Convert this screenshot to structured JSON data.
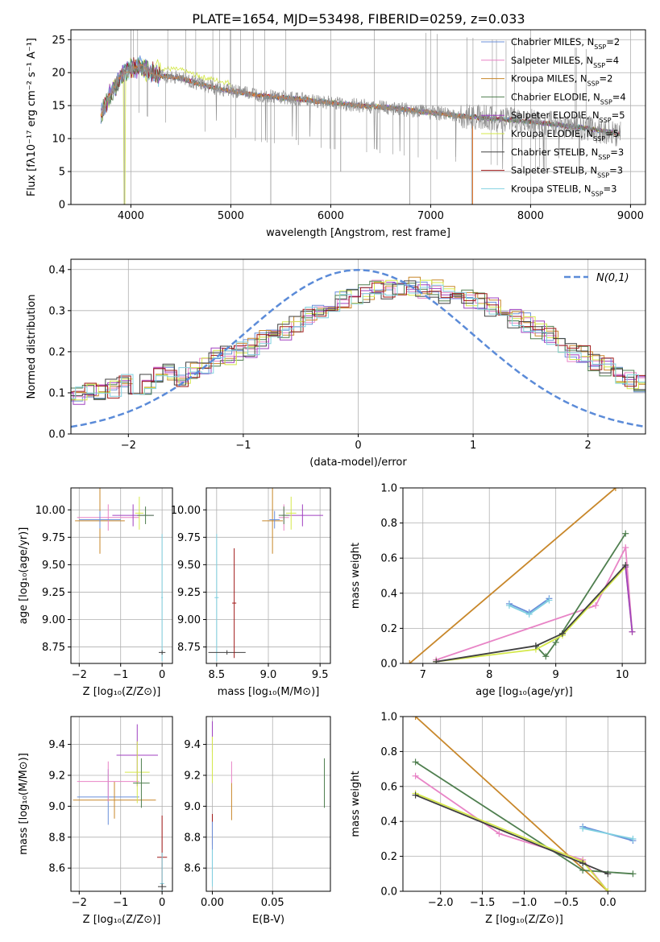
{
  "title": "PLATE=1654, MJD=53498, FIBERID=0259, z=0.033",
  "colors": {
    "Chabrier MILES": "#6a8fd9",
    "Salpeter MILES": "#e884c6",
    "Kroupa MILES": "#c8872a",
    "Chabrier ELODIE": "#4f7f4f",
    "Salpeter ELODIE": "#a040c0",
    "Kroupa ELODIE": "#d4e84a",
    "Chabrier STELIB": "#404040",
    "Salpeter STELIB": "#a01818",
    "Kroupa STELIB": "#80d0e0",
    "data": "#909090",
    "normal": "#5b8bd8",
    "model": "#e07830"
  },
  "legend": [
    {
      "key": "Chabrier MILES",
      "text": "Chabrier MILES, N",
      "sub": "SSP",
      "tail": "=2"
    },
    {
      "key": "Salpeter MILES",
      "text": "Salpeter MILES, N",
      "sub": "SSP",
      "tail": "=4"
    },
    {
      "key": "Kroupa MILES",
      "text": "Kroupa MILES, N",
      "sub": "SSP",
      "tail": "=2"
    },
    {
      "key": "Chabrier ELODIE",
      "text": "Chabrier ELODIE, N",
      "sub": "SSP",
      "tail": "=4"
    },
    {
      "key": "Salpeter ELODIE",
      "text": "Salpeter ELODIE, N",
      "sub": "SSP",
      "tail": "=5"
    },
    {
      "key": "Kroupa ELODIE",
      "text": "Kroupa ELODIE, N",
      "sub": "SSP",
      "tail": "=5"
    },
    {
      "key": "Chabrier STELIB",
      "text": "Chabrier STELIB, N",
      "sub": "SSP",
      "tail": "=3"
    },
    {
      "key": "Salpeter STELIB",
      "text": "Salpeter STELIB, N",
      "sub": "SSP",
      "tail": "=3"
    },
    {
      "key": "Kroupa STELIB",
      "text": "Kroupa STELIB, N",
      "sub": "SSP",
      "tail": "=3"
    }
  ],
  "chart_data": [
    {
      "type": "line",
      "name": "spectrum",
      "xlabel": "wavelength [Angstrom, rest frame]",
      "ylabel": "Flux [fλ10⁻¹⁷ erg cm⁻² s⁻¹ A⁻¹]",
      "xlim": [
        3400,
        9150
      ],
      "ylim": [
        0,
        26.5
      ],
      "xticks": [
        "4000",
        "5000",
        "6000",
        "7000",
        "8000",
        "9000"
      ],
      "yticks": [
        "0",
        "5",
        "10",
        "15",
        "20",
        "25"
      ],
      "continuum": {
        "x": [
          3700,
          3800,
          3900,
          4000,
          4100,
          4200,
          4300,
          4500,
          4700,
          4900,
          5100,
          5300,
          5500,
          5700,
          5900,
          6100,
          6300,
          6500,
          6700,
          6900,
          7100,
          7300,
          7500,
          7700,
          7900,
          8100,
          8300,
          8500,
          8700,
          8900
        ],
        "y": [
          13.5,
          17,
          19.5,
          20.5,
          21,
          20,
          19.5,
          19.2,
          18.2,
          17.5,
          17.0,
          16.5,
          16.2,
          16.0,
          15.6,
          15.3,
          15.0,
          14.8,
          14.5,
          14.1,
          13.8,
          13.4,
          13.2,
          12.9,
          12.7,
          12.4,
          12.0,
          11.7,
          11.2,
          10.7
        ]
      },
      "orange_model_end": 7420,
      "lines": [
        {
          "x": 3934,
          "y": 0
        },
        {
          "x": 5400,
          "y": 0
        },
        {
          "x": 6790,
          "y": 0
        },
        {
          "x": 6100,
          "y": 5
        },
        {
          "x": 7410,
          "y": 0
        }
      ]
    },
    {
      "type": "line",
      "name": "residual-distribution",
      "xlabel": "(data-model)/error",
      "ylabel": "Normed distribution",
      "xlim": [
        -2.5,
        2.5
      ],
      "ylim": [
        0,
        0.425
      ],
      "xticks": [
        "-2",
        "-1",
        "0",
        "1",
        "2"
      ],
      "yticks": [
        "0.0",
        "0.1",
        "0.2",
        "0.3",
        "0.4"
      ],
      "legend_label": "N(0,1)",
      "hist": {
        "bin_start": -2.5,
        "bin_width": 0.1,
        "values": [
          0.08,
          0.09,
          0.11,
          0.1,
          0.11,
          0.12,
          0.11,
          0.12,
          0.14,
          0.15,
          0.14,
          0.16,
          0.17,
          0.19,
          0.19,
          0.2,
          0.21,
          0.23,
          0.24,
          0.25,
          0.27,
          0.29,
          0.3,
          0.31,
          0.33,
          0.33,
          0.34,
          0.35,
          0.35,
          0.36,
          0.36,
          0.35,
          0.35,
          0.34,
          0.33,
          0.33,
          0.32,
          0.31,
          0.3,
          0.28,
          0.27,
          0.25,
          0.24,
          0.22,
          0.2,
          0.19,
          0.17,
          0.16,
          0.14,
          0.13,
          0.12,
          0.11,
          0.1,
          0.09,
          0.08,
          0.07,
          0.07,
          0.06,
          0.06,
          0.06,
          0.05,
          0.05,
          0.05,
          0.05,
          0.05,
          0.04,
          0.04,
          0.04,
          0.04,
          0.03
        ]
      }
    },
    {
      "type": "scatter",
      "name": "age-vs-Z",
      "xlabel": "Z [log₁₀(Z/Z⊙)]",
      "ylabel": "age  [log₁₀(age/yr)]",
      "xlim": [
        -2.2,
        0.25
      ],
      "ylim": [
        8.6,
        10.2
      ],
      "xticks": [
        "-2",
        "-1",
        "0"
      ],
      "yticks": [
        "8.75",
        "9.00",
        "9.25",
        "9.50",
        "9.75",
        "10.00"
      ],
      "points": [
        {
          "key": "Kroupa MILES",
          "x": -1.5,
          "y": 9.9,
          "xe": 0.6,
          "ye": 0.3
        },
        {
          "key": "Salpeter MILES",
          "x": -1.3,
          "y": 9.93,
          "xe": 0.75,
          "ye": 0.12
        },
        {
          "key": "Chabrier MILES",
          "x": -1.5,
          "y": 9.91,
          "xe": 0.5,
          "ye": 0.08
        },
        {
          "key": "Salpeter ELODIE",
          "x": -0.7,
          "y": 9.95,
          "xe": 0.5,
          "ye": 0.1
        },
        {
          "key": "Kroupa ELODIE",
          "x": -0.55,
          "y": 9.97,
          "xe": 0.1,
          "ye": 0.15
        },
        {
          "key": "Chabrier ELODIE",
          "x": -0.4,
          "y": 9.95,
          "xe": 0.2,
          "ye": 0.08
        },
        {
          "key": "Kroupa STELIB",
          "x": 0.0,
          "y": 9.2,
          "xe": 0.02,
          "ye": 0.58
        },
        {
          "key": "Chabrier STELIB",
          "x": 0.0,
          "y": 8.7,
          "xe": 0.08,
          "ye": 0.02
        }
      ]
    },
    {
      "type": "scatter",
      "name": "age-vs-mass",
      "xlabel": "mass [log₁₀(M/M⊙)]",
      "ylabel": "",
      "xlim": [
        8.4,
        9.6
      ],
      "ylim": [
        8.6,
        10.2
      ],
      "xticks": [
        "8.5",
        "9.0",
        "9.5"
      ],
      "yticks": [
        "8.75",
        "9.00",
        "9.25",
        "9.50",
        "9.75",
        "10.00"
      ],
      "points": [
        {
          "key": "Kroupa STELIB",
          "x": 8.5,
          "y": 9.2,
          "xe": 0.02,
          "ye": 0.58
        },
        {
          "key": "Chabrier STELIB",
          "x": 8.6,
          "y": 8.7,
          "xe": 0.18,
          "ye": 0.02
        },
        {
          "key": "Salpeter STELIB",
          "x": 8.67,
          "y": 9.15,
          "xe": 0.02,
          "ye": 0.5
        },
        {
          "key": "Kroupa MILES",
          "x": 9.04,
          "y": 9.9,
          "xe": 0.1,
          "ye": 0.3
        },
        {
          "key": "Salpeter MILES",
          "x": 9.15,
          "y": 9.93,
          "xe": 0.05,
          "ye": 0.12
        },
        {
          "key": "Salpeter ELODIE",
          "x": 9.33,
          "y": 9.95,
          "xe": 0.2,
          "ye": 0.1
        },
        {
          "key": "Kroupa ELODIE",
          "x": 9.22,
          "y": 9.97,
          "xe": 0.05,
          "ye": 0.15
        },
        {
          "key": "Chabrier ELODIE",
          "x": 9.15,
          "y": 9.95,
          "xe": 0.05,
          "ye": 0.08
        },
        {
          "key": "Chabrier MILES",
          "x": 9.06,
          "y": 9.91,
          "xe": 0.05,
          "ye": 0.08
        }
      ]
    },
    {
      "type": "line",
      "name": "mass-weight-vs-age",
      "xlabel": "age  [log₁₀(age/yr)]",
      "ylabel": "mass weight",
      "xlim": [
        6.7,
        10.35
      ],
      "ylim": [
        0,
        1.0
      ],
      "xticks": [
        "7",
        "8",
        "9",
        "10"
      ],
      "yticks": [
        "0.0",
        "0.2",
        "0.4",
        "0.6",
        "0.8",
        "1.0"
      ],
      "series": [
        {
          "key": "Kroupa MILES",
          "x": [
            6.8,
            9.9
          ],
          "y": [
            0.0,
            1.0
          ]
        },
        {
          "key": "Chabrier MILES",
          "x": [
            8.3,
            8.6,
            8.9
          ],
          "y": [
            0.34,
            0.29,
            0.37
          ]
        },
        {
          "key": "Kroupa STELIB",
          "x": [
            8.3,
            8.6,
            8.9
          ],
          "y": [
            0.33,
            0.28,
            0.36
          ]
        },
        {
          "key": "Salpeter MILES",
          "x": [
            7.2,
            9.6,
            10.05,
            10.15
          ],
          "y": [
            0.02,
            0.33,
            0.66,
            0.18
          ]
        },
        {
          "key": "Chabrier ELODIE",
          "x": [
            8.7,
            8.85,
            9.0,
            10.05
          ],
          "y": [
            0.1,
            0.04,
            0.12,
            0.74
          ]
        },
        {
          "key": "Kroupa ELODIE",
          "x": [
            7.2,
            8.7,
            9.1,
            10.05,
            10.15
          ],
          "y": [
            0.01,
            0.08,
            0.16,
            0.55,
            0.18
          ]
        },
        {
          "key": "Salpeter ELODIE",
          "x": [
            10.05,
            10.15
          ],
          "y": [
            0.55,
            0.18
          ]
        },
        {
          "key": "Chabrier STELIB",
          "x": [
            7.2,
            8.7,
            9.1,
            10.05
          ],
          "y": [
            0.01,
            0.1,
            0.17,
            0.56
          ]
        }
      ]
    },
    {
      "type": "scatter",
      "name": "mass-vs-Z",
      "xlabel": "Z [log₁₀(Z/Z⊙)]",
      "ylabel": "mass [log₁₀(M/M⊙)]",
      "xlim": [
        -2.2,
        0.25
      ],
      "ylim": [
        8.45,
        9.58
      ],
      "xticks": [
        "-2",
        "-1",
        "0"
      ],
      "yticks": [
        "8.6",
        "8.8",
        "9.0",
        "9.2",
        "9.4"
      ],
      "points": [
        {
          "key": "Chabrier MILES",
          "x": -1.3,
          "y": 9.06,
          "xe": 0.75,
          "ye": 0.18
        },
        {
          "key": "Kroupa MILES",
          "x": -1.15,
          "y": 9.04,
          "xe": 1.0,
          "ye": 0.12
        },
        {
          "key": "Salpeter MILES",
          "x": -1.3,
          "y": 9.16,
          "xe": 0.75,
          "ye": 0.13
        },
        {
          "key": "Salpeter ELODIE",
          "x": -0.6,
          "y": 9.33,
          "xe": 0.5,
          "ye": 0.2
        },
        {
          "key": "Kroupa ELODIE",
          "x": -0.6,
          "y": 9.22,
          "xe": 0.3,
          "ye": 0.2
        },
        {
          "key": "Chabrier ELODIE",
          "x": -0.5,
          "y": 9.15,
          "xe": 0.2,
          "ye": 0.16
        },
        {
          "key": "Salpeter STELIB",
          "x": 0.0,
          "y": 8.67,
          "xe": 0.12,
          "ye": 0.27
        },
        {
          "key": "Kroupa STELIB",
          "x": 0.0,
          "y": 8.5,
          "xe": 0.05,
          "ye": 0.2
        },
        {
          "key": "Chabrier STELIB",
          "x": 0.0,
          "y": 8.48,
          "xe": 0.1,
          "ye": 0.02
        }
      ]
    },
    {
      "type": "scatter",
      "name": "mass-vs-EBV",
      "xlabel": "E(B-V)",
      "ylabel": "",
      "xlim": [
        -0.005,
        0.098
      ],
      "ylim": [
        8.45,
        9.58
      ],
      "xticks": [
        "0.00",
        "0.05"
      ],
      "yticks": [
        "8.6",
        "8.8",
        "9.0",
        "9.2",
        "9.4"
      ],
      "points": [
        {
          "key": "Salpeter ELODIE",
          "x": 0.0,
          "y": 9.45,
          "xe": 0.0,
          "ye": 0.1
        },
        {
          "key": "Kroupa ELODIE",
          "x": 0.0,
          "y": 9.3,
          "xe": 0.0,
          "ye": 0.15
        },
        {
          "key": "Salpeter STELIB",
          "x": 0.0,
          "y": 8.85,
          "xe": 0.0,
          "ye": 0.1
        },
        {
          "key": "Chabrier MILES",
          "x": 0.0,
          "y": 8.7,
          "xe": 0.0,
          "ye": 0.2
        },
        {
          "key": "Kroupa STELIB",
          "x": 0.0,
          "y": 8.6,
          "xe": 0.0,
          "ye": 0.12
        },
        {
          "key": "Salpeter MILES",
          "x": 0.016,
          "y": 9.22,
          "xe": 0.0,
          "ye": 0.07
        },
        {
          "key": "Kroupa MILES",
          "x": 0.016,
          "y": 9.03,
          "xe": 0.0,
          "ye": 0.12
        },
        {
          "key": "Chabrier ELODIE",
          "x": 0.093,
          "y": 9.15,
          "xe": 0.0,
          "ye": 0.16
        }
      ]
    },
    {
      "type": "line",
      "name": "mass-weight-vs-Z",
      "xlabel": "Z [log₁₀(Z/Z⊙)]",
      "ylabel": "mass weight",
      "xlim": [
        -2.45,
        0.45
      ],
      "ylim": [
        0,
        1.0
      ],
      "xticks": [
        "-2.0",
        "-1.5",
        "-1.0",
        "-0.5",
        "0.0"
      ],
      "yticks": [
        "0.0",
        "0.2",
        "0.4",
        "0.6",
        "0.8",
        "1.0"
      ],
      "series": [
        {
          "key": "Kroupa MILES",
          "x": [
            -2.3,
            0.0
          ],
          "y": [
            1.0,
            0.0
          ]
        },
        {
          "key": "Chabrier MILES",
          "x": [
            -0.3,
            0.3
          ],
          "y": [
            0.37,
            0.29
          ]
        },
        {
          "key": "Kroupa STELIB",
          "x": [
            -0.3,
            0.3
          ],
          "y": [
            0.36,
            0.3
          ]
        },
        {
          "key": "Salpeter MILES",
          "x": [
            -2.3,
            -1.3,
            -0.3,
            0.0
          ],
          "y": [
            0.66,
            0.33,
            0.18,
            0.0
          ]
        },
        {
          "key": "Chabrier ELODIE",
          "x": [
            -2.3,
            -0.3,
            0.3
          ],
          "y": [
            0.74,
            0.12,
            0.1
          ]
        },
        {
          "key": "Kroupa ELODIE",
          "x": [
            -2.3,
            -0.3,
            0.0
          ],
          "y": [
            0.56,
            0.17,
            0.0
          ]
        },
        {
          "key": "Chabrier STELIB",
          "x": [
            -2.3,
            -0.3,
            0.0
          ],
          "y": [
            0.55,
            0.16,
            0.1
          ]
        }
      ]
    }
  ]
}
